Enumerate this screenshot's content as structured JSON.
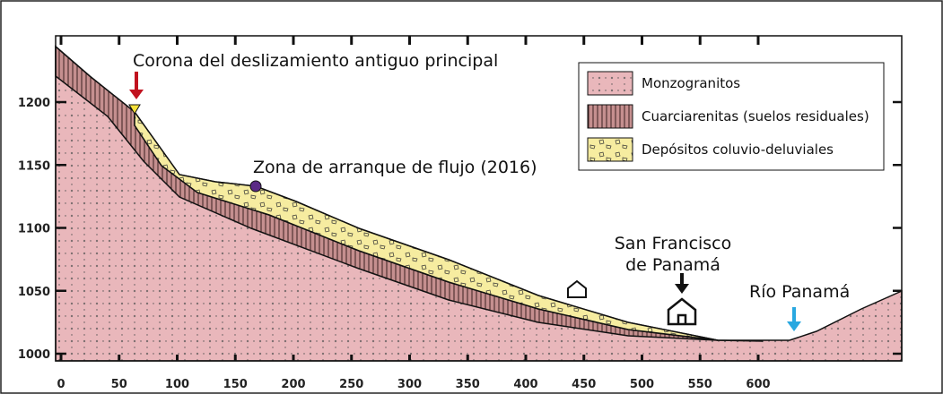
{
  "x_axis": {
    "ticks": [
      0,
      50,
      100,
      150,
      200,
      250,
      300,
      350,
      400,
      450,
      500,
      550,
      600
    ]
  },
  "y_axis": {
    "ticks": [
      1000,
      1050,
      1100,
      1150,
      1200
    ]
  },
  "legend": {
    "items": [
      "Monzogranitos",
      "Cuarciarenitas (suelos residuales)",
      "Depósitos coluvio-deluviales"
    ]
  },
  "annotations": {
    "crown": "Corona del deslizamiento antiguo principal",
    "flow": "Zona de arranque de flujo (2016)",
    "town": [
      "San Francisco",
      "de Panamá"
    ],
    "river": "Río Panamá"
  }
}
